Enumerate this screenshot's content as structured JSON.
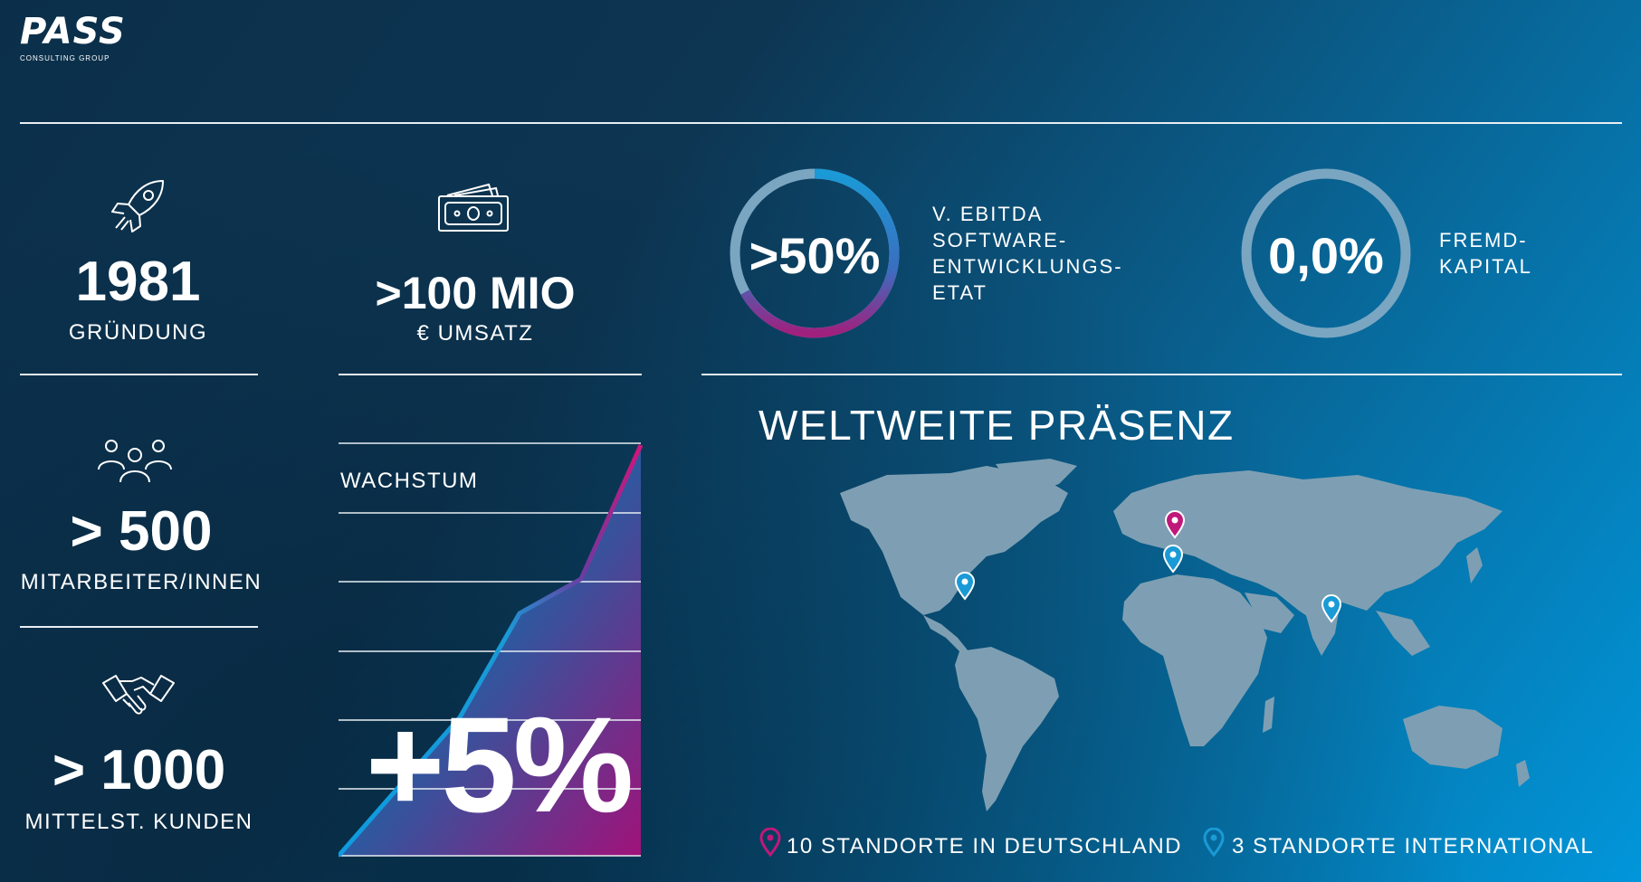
{
  "logo": {
    "name": "PASS",
    "tagline": "CONSULTING GROUP"
  },
  "stats": {
    "founded": {
      "value": "1981",
      "label": "GRÜNDUNG",
      "icon": "rocket-icon"
    },
    "revenue": {
      "value": ">100 MIO",
      "label": "€ UMSATZ",
      "icon": "money-icon"
    },
    "employees": {
      "value": "> 500",
      "label": "MITARBEITER/INNEN",
      "icon": "people-icon"
    },
    "customers": {
      "value": "> 1000",
      "label": "MITTELST. KUNDEN",
      "icon": "handshake-icon"
    }
  },
  "ebitda": {
    "value": ">50%",
    "label_lines": [
      "V. EBITDA",
      "SOFTWARE-",
      "ENTWICKLUNGS-",
      "ETAT"
    ],
    "fill_fraction": 0.5
  },
  "fremdkapital": {
    "value": "0,0%",
    "label_lines": [
      "FREMD-",
      "KAPITAL"
    ],
    "fill_fraction": 0.0
  },
  "growth": {
    "title": "WACHSTUM",
    "value": "+5%"
  },
  "world": {
    "title": "WELTWEITE PRÄSENZ",
    "legend_germany": "10 STANDORTE IN DEUTSCHLAND",
    "legend_international": "3 STANDORTE INTERNATIONAL"
  },
  "colors": {
    "accent_magenta": "#c0187a",
    "accent_blue": "#1a9ad6",
    "map_land": "#7e9fb3"
  }
}
